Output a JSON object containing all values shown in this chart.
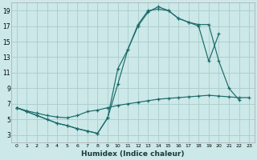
{
  "xlabel": "Humidex (Indice chaleur)",
  "bg_color": "#cce8e8",
  "grid_color": "#aacccc",
  "line_color": "#1a6b6b",
  "xlim": [
    -0.5,
    23.5
  ],
  "ylim": [
    2.0,
    20.0
  ],
  "yticks": [
    3,
    5,
    7,
    9,
    11,
    13,
    15,
    17,
    19
  ],
  "xticks": [
    0,
    1,
    2,
    3,
    4,
    5,
    6,
    7,
    8,
    9,
    10,
    11,
    12,
    13,
    14,
    15,
    16,
    17,
    18,
    19,
    20,
    21,
    22,
    23
  ],
  "line1_x": [
    0,
    1,
    2,
    3,
    4,
    5,
    6,
    7,
    8,
    9,
    10,
    11,
    12,
    13,
    14,
    15,
    16,
    17,
    18,
    19,
    20,
    21,
    22
  ],
  "line1_y": [
    6.5,
    6.0,
    5.5,
    5.0,
    4.5,
    4.2,
    3.8,
    3.5,
    3.2,
    5.2,
    9.5,
    14.0,
    17.2,
    19.0,
    19.2,
    19.0,
    18.0,
    17.5,
    17.2,
    17.2,
    12.5,
    9.0,
    7.5
  ],
  "line2_x": [
    0,
    1,
    2,
    3,
    4,
    5,
    6,
    7,
    8,
    9,
    10,
    11,
    12,
    13,
    14,
    15,
    16,
    17,
    18,
    19,
    20
  ],
  "line2_y": [
    6.5,
    6.0,
    5.5,
    5.0,
    4.5,
    4.2,
    3.8,
    3.5,
    3.2,
    5.2,
    11.5,
    14.0,
    17.0,
    18.8,
    19.5,
    19.0,
    18.0,
    17.5,
    17.0,
    12.5,
    16.0
  ],
  "line3_x": [
    0,
    1,
    2,
    3,
    4,
    5,
    6,
    7,
    8,
    9,
    10,
    11,
    12,
    13,
    14,
    15,
    16,
    17,
    18,
    19,
    20,
    21,
    22,
    23
  ],
  "line3_y": [
    6.5,
    6.1,
    5.8,
    5.5,
    5.3,
    5.2,
    5.5,
    6.0,
    6.2,
    6.5,
    6.8,
    7.0,
    7.2,
    7.4,
    7.6,
    7.7,
    7.8,
    7.9,
    8.0,
    8.1,
    8.0,
    7.9,
    7.8,
    7.8
  ]
}
